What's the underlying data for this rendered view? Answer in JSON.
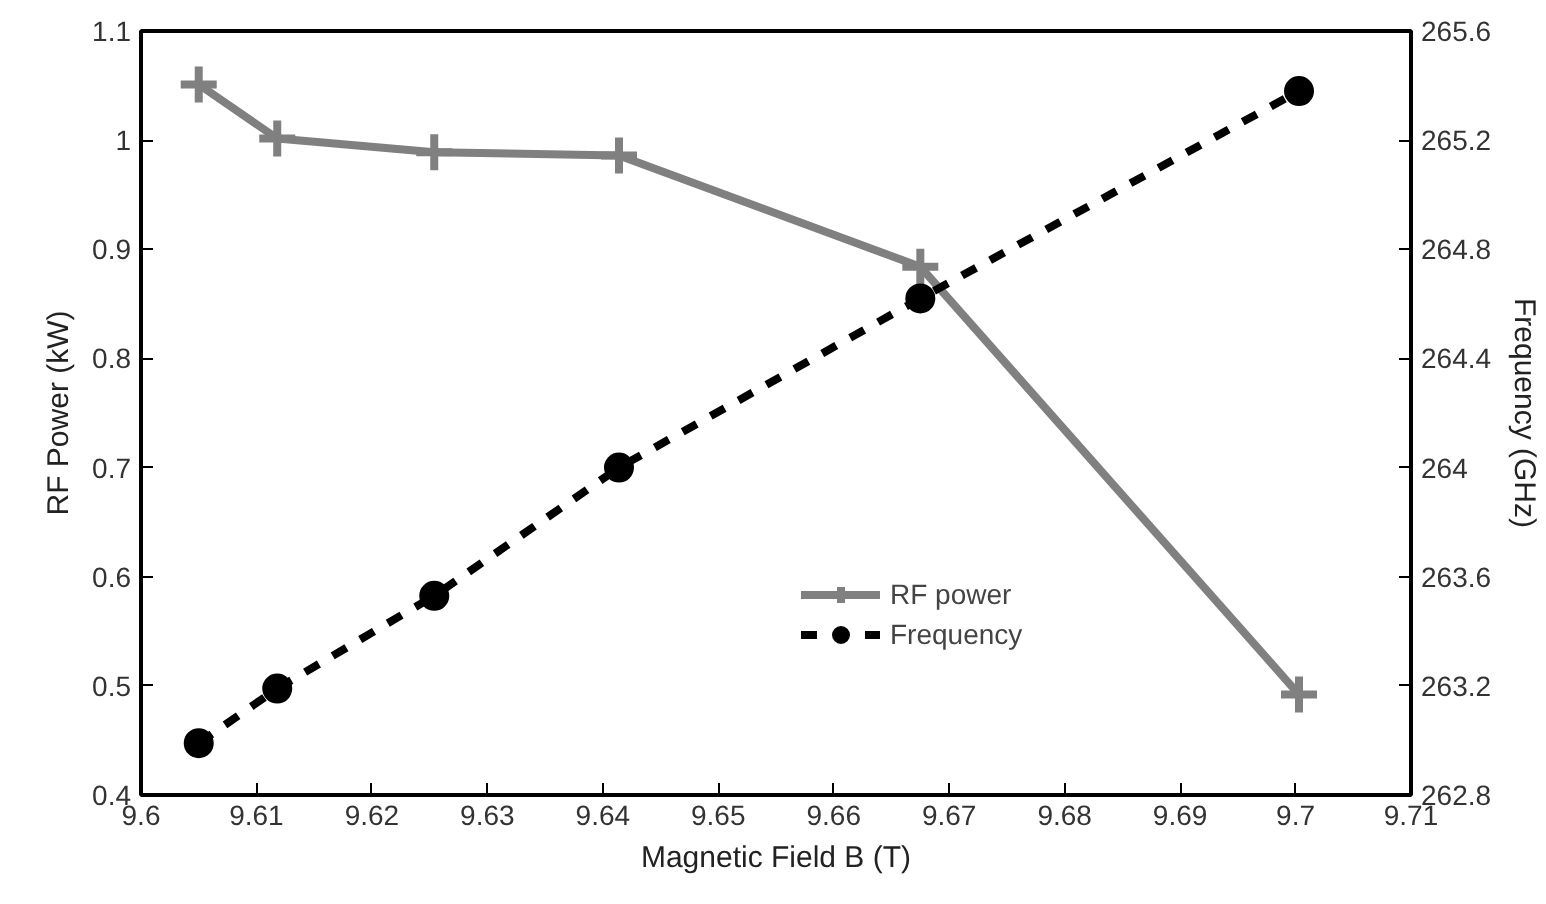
{
  "chart_data": {
    "type": "line",
    "xlabel": "Magnetic Field B (T)",
    "ylabel": "RF Power (kW)",
    "y2label": "Frequency (GHz)",
    "x": [
      9.605,
      9.6118,
      9.6254,
      9.6414,
      9.6675,
      9.7003
    ],
    "series": [
      {
        "name": "RF power",
        "color": "#808080",
        "marker": "cross",
        "line_style": "solid",
        "values": [
          1.051,
          1.0015,
          0.989,
          0.986,
          0.884,
          0.492
        ]
      },
      {
        "name": "Frequency",
        "color": "#000000",
        "marker": "circle",
        "line_style": "dashed",
        "axis": "y2",
        "values": [
          262.99,
          263.19,
          263.53,
          264.0,
          264.62,
          265.38
        ]
      }
    ],
    "xlim": [
      9.6,
      9.71
    ],
    "xticks": [
      9.6,
      9.61,
      9.62,
      9.63,
      9.64,
      9.65,
      9.66,
      9.67,
      9.68,
      9.69,
      9.7,
      9.71
    ],
    "ylim": [
      0.4,
      1.1
    ],
    "yticks": [
      0.4,
      0.5,
      0.6,
      0.7,
      0.8,
      0.9,
      1,
      1.1
    ],
    "y2lim": [
      262.8,
      265.6
    ],
    "y2ticks": [
      262.8,
      263.2,
      263.6,
      264,
      264.4,
      264.8,
      265.2,
      265.6
    ],
    "grid": false,
    "legend": "bottom"
  }
}
